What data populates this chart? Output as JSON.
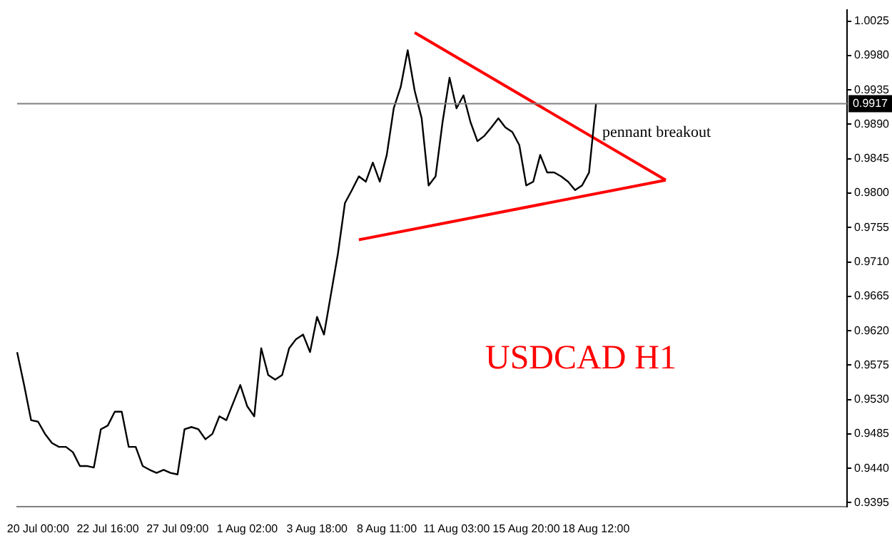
{
  "chart_data": {
    "type": "line",
    "categories": [
      null,
      null,
      null,
      "20 Jul 00:00",
      null,
      null,
      null,
      null,
      null,
      null,
      null,
      null,
      null,
      "22 Jul 16:00",
      null,
      null,
      null,
      null,
      null,
      null,
      null,
      null,
      null,
      "27 Jul 09:00",
      null,
      null,
      null,
      null,
      null,
      null,
      null,
      null,
      null,
      "1 Aug 02:00",
      null,
      null,
      null,
      null,
      null,
      null,
      null,
      null,
      null,
      "3 Aug 18:00",
      null,
      null,
      null,
      null,
      null,
      null,
      null,
      null,
      null,
      "8 Aug 11:00",
      null,
      null,
      null,
      null,
      null,
      null,
      null,
      null,
      null,
      "11 Aug 03:00",
      null,
      null,
      null,
      null,
      null,
      null,
      null,
      null,
      null,
      "15 Aug 20:00",
      null,
      null,
      null,
      null,
      null,
      null,
      null,
      null,
      null,
      "18 Aug 12:00",
      null,
      null,
      null,
      null,
      null,
      null,
      null,
      null,
      null,
      null,
      null,
      null,
      null,
      null,
      null,
      null,
      null,
      null,
      null,
      null,
      null,
      null,
      null,
      null,
      null,
      null,
      null,
      null,
      null,
      null,
      null,
      null,
      null,
      null,
      null,
      null
    ],
    "series": [
      {
        "color": "#000000",
        "values": [
          0.9592,
          0.9549,
          0.9503,
          0.9501,
          0.9485,
          0.9473,
          0.9468,
          0.9468,
          0.9461,
          0.9443,
          0.9443,
          0.9441,
          0.9491,
          0.9496,
          0.9514,
          0.9514,
          0.9468,
          0.9468,
          0.9443,
          0.9438,
          0.9434,
          0.9438,
          0.9434,
          0.9432,
          0.9491,
          0.9494,
          0.9491,
          0.9478,
          0.9485,
          0.9508,
          0.9503,
          0.9526,
          0.9549,
          0.9521,
          0.9508,
          0.9597,
          0.9562,
          0.9556,
          0.9562,
          0.9597,
          0.9609,
          0.9615,
          0.9592,
          0.9638,
          0.9615,
          0.9668,
          0.9721,
          0.9787,
          0.9804,
          0.9822,
          0.9815,
          0.984,
          0.9815,
          0.985,
          0.9911,
          0.9939,
          0.9987,
          0.9934,
          0.9898,
          0.981,
          0.9822,
          0.9893,
          0.9951,
          0.9911,
          0.9928,
          0.9893,
          0.9868,
          0.9875,
          0.9886,
          0.9898,
          0.9886,
          0.988,
          0.9863,
          0.981,
          0.9815,
          0.985,
          0.9827,
          0.9827,
          0.9822,
          0.9815,
          0.9804,
          0.981,
          0.9827,
          0.9917,
          null,
          null,
          null,
          null,
          null,
          null,
          null,
          null,
          null,
          null,
          null,
          null,
          null,
          null,
          null,
          null,
          null,
          null,
          null,
          null,
          null,
          null,
          null,
          null,
          null,
          null,
          null,
          null,
          null,
          null,
          null,
          null,
          null,
          null,
          null,
          null
        ]
      },
      {
        "color": "#ff0000",
        "values": [
          null,
          null,
          null,
          null,
          null,
          null,
          null,
          null,
          null,
          null,
          null,
          null,
          null,
          null,
          null,
          null,
          null,
          null,
          null,
          null,
          null,
          null,
          null,
          null,
          null,
          null,
          null,
          null,
          null,
          null,
          null,
          null,
          null,
          null,
          null,
          null,
          null,
          null,
          null,
          null,
          null,
          null,
          null,
          null,
          null,
          null,
          null,
          null,
          null,
          0.9739,
          null,
          null,
          null,
          null,
          null,
          null,
          null,
          null,
          null,
          null,
          null,
          null,
          null,
          null,
          null,
          null,
          null,
          null,
          null,
          null,
          null,
          null,
          null,
          null,
          null,
          null,
          null,
          null,
          null,
          null,
          null,
          null,
          null,
          null,
          null,
          null,
          null,
          null,
          null,
          null,
          null,
          null,
          null,
          0.9817,
          null,
          null,
          null,
          null,
          null,
          null,
          null,
          null,
          null,
          null,
          null,
          null,
          null,
          null,
          null,
          null,
          null,
          null,
          null,
          null,
          null,
          null,
          null,
          null,
          null,
          null
        ]
      },
      {
        "color": "#ff0000",
        "values": [
          null,
          null,
          null,
          null,
          null,
          null,
          null,
          null,
          null,
          null,
          null,
          null,
          null,
          null,
          null,
          null,
          null,
          null,
          null,
          null,
          null,
          null,
          null,
          null,
          null,
          null,
          null,
          null,
          null,
          null,
          null,
          null,
          null,
          null,
          null,
          null,
          null,
          null,
          null,
          null,
          null,
          null,
          null,
          null,
          null,
          null,
          null,
          null,
          null,
          null,
          null,
          null,
          null,
          null,
          null,
          null,
          null,
          1.001,
          null,
          null,
          null,
          null,
          null,
          null,
          null,
          null,
          null,
          null,
          null,
          null,
          null,
          null,
          null,
          null,
          null,
          null,
          null,
          null,
          null,
          null,
          null,
          null,
          null,
          null,
          null,
          null,
          null,
          null,
          null,
          null,
          null,
          null,
          null,
          0.9817,
          null,
          null,
          null,
          null,
          null,
          null,
          null,
          null,
          null,
          null,
          null,
          null,
          null,
          null,
          null,
          null,
          null,
          null,
          null,
          null,
          null,
          null,
          null,
          null,
          null,
          null
        ]
      }
    ],
    "ylim": [
      0.939,
      1.004
    ],
    "yticks": [
      1.0025,
      {
        "value": 0.998,
        "label": "0.9980"
      },
      0.9935,
      {
        "value": 0.989,
        "label": "0.9890"
      },
      0.9845,
      {
        "value": 0.98,
        "label": "0.9800"
      },
      0.9755,
      {
        "value": 0.971,
        "label": "0.9710"
      },
      0.9665,
      {
        "value": 0.962,
        "label": "0.9620"
      },
      0.9575,
      {
        "value": 0.953,
        "label": "0.9530"
      },
      0.9485,
      {
        "value": 0.944,
        "label": "0.9440"
      },
      0.9395
    ],
    "ref_lines": [
      {
        "axis": "y",
        "value": 0.9917,
        "label": "0.9917",
        "color": "#808080"
      }
    ],
    "annotations": [
      "pennant breakout",
      "USDCAD H1"
    ]
  }
}
